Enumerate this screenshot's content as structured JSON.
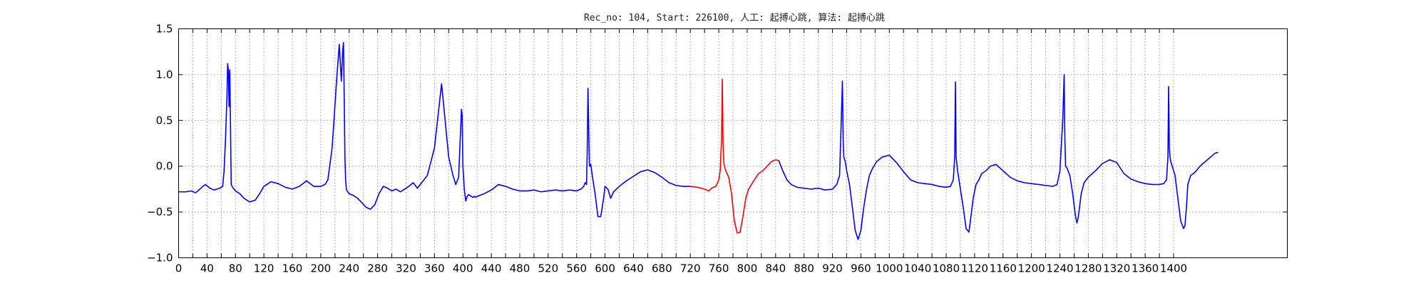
{
  "chart_data": {
    "type": "line",
    "title": "Rec_no: 104, Start: 226100, 人工: 起搏心跳, 算法: 起搏心跳",
    "xlabel": "",
    "ylabel": "",
    "xlim": [
      0,
      1560
    ],
    "ylim": [
      -1.0,
      1.5
    ],
    "grid": true,
    "y_ticks": [
      -1.0,
      -0.5,
      0.0,
      0.5,
      1.0,
      1.5
    ],
    "y_tick_labels": [
      "−1.0",
      "−0.5",
      "0.0",
      "0.5",
      "1.0",
      "1.5"
    ],
    "x_ticks": [
      0,
      20,
      40,
      60,
      80,
      100,
      120,
      140,
      160,
      180,
      200,
      220,
      240,
      260,
      280,
      300,
      320,
      340,
      360,
      380,
      400,
      420,
      440,
      460,
      480,
      500,
      520,
      540,
      560,
      580,
      600,
      620,
      640,
      660,
      680,
      700,
      720,
      740,
      760,
      780,
      800,
      820,
      840,
      860,
      880,
      900,
      920,
      940,
      960,
      980,
      1000,
      1020,
      1040,
      1060,
      1080,
      1100,
      1120,
      1140,
      1160,
      1180,
      1200,
      1220,
      1240,
      1260,
      1280,
      1300,
      1320,
      1340,
      1360,
      1380,
      1400
    ],
    "x_tick_labels": [
      "0",
      "",
      "40",
      "",
      "80",
      "",
      "120",
      "",
      "160",
      "",
      "200",
      "",
      "240",
      "",
      "280",
      "",
      "320",
      "",
      "360",
      "",
      "400",
      "",
      "440",
      "",
      "480",
      "",
      "520",
      "",
      "560",
      "",
      "600",
      "",
      "640",
      "",
      "680",
      "",
      "720",
      "",
      "760",
      "",
      "800",
      "",
      "840",
      "",
      "880",
      "",
      "920",
      "",
      "960",
      "",
      "1000",
      "",
      "1040",
      "",
      "1080",
      "",
      "1120",
      "",
      "1160",
      "",
      "1200",
      "",
      "1240",
      "",
      "1280",
      "",
      "1320",
      "",
      "1360",
      "",
      "1400"
    ],
    "series": [
      {
        "color": "#0000ff",
        "x": [
          0,
          10,
          18,
          24,
          30,
          34,
          38,
          44,
          50,
          54,
          58,
          62,
          64,
          66,
          68,
          69,
          70,
          71,
          72,
          73,
          74,
          76,
          80,
          86,
          92,
          100,
          108,
          114,
          120,
          130,
          140,
          150,
          160,
          170,
          180,
          190,
          200,
          206,
          210,
          216,
          222,
          226,
          229,
          231,
          232,
          233,
          234,
          235,
          236,
          237,
          238,
          240,
          246,
          252,
          258,
          264,
          270,
          276,
          282,
          288,
          294,
          300,
          306,
          312,
          318,
          324,
          330,
          336,
          340,
          350,
          360,
          370,
          380,
          386,
          390,
          394,
          396,
          398,
          399,
          400,
          402,
          404,
          406,
          408,
          410,
          412,
          414,
          416,
          418,
          420,
          430,
          440,
          450,
          460,
          470,
          480,
          490,
          500,
          510,
          520,
          530,
          540,
          550,
          560,
          566,
          570,
          572,
          574,
          575,
          576,
          578,
          580,
          582,
          586,
          590,
          594,
          598,
          600,
          604,
          608,
          612,
          620,
          630,
          640,
          650,
          660,
          670,
          680,
          690,
          700,
          710,
          720
        ],
        "y": [
          -0.28,
          -0.28,
          -0.27,
          -0.29,
          -0.25,
          -0.22,
          -0.2,
          -0.24,
          -0.26,
          -0.25,
          -0.24,
          -0.22,
          -0.05,
          0.3,
          0.75,
          1.12,
          1.05,
          0.65,
          1.05,
          0.45,
          -0.2,
          -0.23,
          -0.27,
          -0.3,
          -0.35,
          -0.39,
          -0.37,
          -0.3,
          -0.22,
          -0.17,
          -0.19,
          -0.23,
          -0.25,
          -0.22,
          -0.16,
          -0.22,
          -0.22,
          -0.2,
          -0.15,
          0.2,
          0.9,
          1.33,
          0.93,
          1.28,
          1.35,
          0.75,
          0.1,
          -0.15,
          -0.25,
          -0.27,
          -0.28,
          -0.3,
          -0.32,
          -0.35,
          -0.4,
          -0.45,
          -0.47,
          -0.42,
          -0.3,
          -0.22,
          -0.24,
          -0.27,
          -0.25,
          -0.28,
          -0.25,
          -0.22,
          -0.18,
          -0.24,
          -0.2,
          -0.1,
          0.2,
          0.9,
          0.1,
          -0.1,
          -0.2,
          -0.12,
          0.25,
          0.62,
          0.55,
          0.0,
          -0.25,
          -0.38,
          -0.33,
          -0.31,
          -0.32,
          -0.33,
          -0.34,
          -0.33,
          -0.34,
          -0.33,
          -0.3,
          -0.26,
          -0.2,
          -0.22,
          -0.25,
          -0.27,
          -0.27,
          -0.26,
          -0.28,
          -0.27,
          -0.26,
          -0.27,
          -0.26,
          -0.27,
          -0.25,
          -0.22,
          -0.18,
          -0.2,
          0.2,
          0.85,
          0.0,
          0.02,
          -0.1,
          -0.3,
          -0.55,
          -0.55,
          -0.35,
          -0.22,
          -0.25,
          -0.35,
          -0.28,
          -0.22,
          -0.16,
          -0.11,
          -0.06,
          -0.04,
          -0.07,
          -0.12,
          -0.18,
          -0.21,
          -0.22,
          -0.22
        ]
      },
      {
        "color": "#ff0000",
        "x": [
          720,
          730,
          740,
          746,
          750,
          756,
          760,
          762,
          764,
          765,
          766,
          767,
          768,
          770,
          774,
          778,
          782,
          786,
          790,
          794,
          798,
          802,
          806,
          810,
          816,
          822,
          828,
          834,
          840,
          845
        ],
        "y": [
          -0.22,
          -0.23,
          -0.25,
          -0.27,
          -0.24,
          -0.22,
          -0.15,
          -0.05,
          0.3,
          0.95,
          0.25,
          0.05,
          0.0,
          -0.05,
          -0.12,
          -0.3,
          -0.6,
          -0.73,
          -0.72,
          -0.55,
          -0.35,
          -0.25,
          -0.2,
          -0.15,
          -0.08,
          -0.05,
          0.0,
          0.05,
          0.07,
          0.06
        ]
      },
      {
        "color": "#0000ff",
        "x": [
          845,
          850,
          856,
          862,
          870,
          880,
          890,
          900,
          910,
          920,
          926,
          930,
          932,
          934,
          935,
          936,
          938,
          940,
          944,
          948,
          952,
          956,
          960,
          964,
          968,
          972,
          976,
          982,
          990,
          1000,
          1010,
          1020,
          1030,
          1040,
          1050,
          1060,
          1070,
          1080,
          1086,
          1090,
          1092,
          1093,
          1094,
          1096,
          1098,
          1100,
          1104,
          1108,
          1112,
          1114,
          1118,
          1122,
          1126,
          1130,
          1136,
          1142,
          1150,
          1160,
          1170,
          1180,
          1190,
          1200,
          1210,
          1220,
          1230,
          1236,
          1240,
          1244,
          1246,
          1247,
          1248,
          1250,
          1254,
          1258,
          1262,
          1264,
          1266,
          1270,
          1274,
          1280,
          1290,
          1300,
          1310,
          1320,
          1330,
          1340,
          1350,
          1360,
          1370,
          1380,
          1386,
          1390,
          1392,
          1393,
          1394,
          1395,
          1396,
          1398,
          1402,
          1406,
          1410,
          1414,
          1416,
          1418,
          1420,
          1424,
          1428,
          1432,
          1436,
          1440,
          1446,
          1452,
          1458,
          1462
        ],
        "y": [
          0.05,
          -0.05,
          -0.15,
          -0.2,
          -0.23,
          -0.24,
          -0.25,
          -0.24,
          -0.26,
          -0.25,
          -0.2,
          -0.1,
          0.4,
          0.93,
          0.3,
          0.1,
          0.05,
          -0.05,
          -0.2,
          -0.45,
          -0.7,
          -0.8,
          -0.7,
          -0.45,
          -0.25,
          -0.1,
          -0.03,
          0.05,
          0.1,
          0.12,
          0.04,
          -0.06,
          -0.15,
          -0.18,
          -0.19,
          -0.2,
          -0.22,
          -0.23,
          -0.22,
          -0.15,
          0.1,
          0.92,
          0.1,
          -0.05,
          -0.15,
          -0.25,
          -0.45,
          -0.68,
          -0.72,
          -0.6,
          -0.35,
          -0.2,
          -0.15,
          -0.08,
          -0.05,
          0.0,
          0.02,
          -0.05,
          -0.12,
          -0.16,
          -0.18,
          -0.19,
          -0.2,
          -0.21,
          -0.22,
          -0.2,
          -0.05,
          0.5,
          1.0,
          0.3,
          0.0,
          -0.02,
          -0.1,
          -0.3,
          -0.55,
          -0.62,
          -0.55,
          -0.3,
          -0.18,
          -0.12,
          -0.05,
          0.03,
          0.07,
          0.04,
          -0.08,
          -0.14,
          -0.17,
          -0.19,
          -0.2,
          -0.2,
          -0.19,
          -0.15,
          0.1,
          0.87,
          0.2,
          0.1,
          0.05,
          0.0,
          -0.1,
          -0.35,
          -0.6,
          -0.68,
          -0.65,
          -0.45,
          -0.2,
          -0.1,
          -0.08,
          -0.05,
          -0.01,
          0.02,
          0.06,
          0.1,
          0.14,
          0.15
        ]
      }
    ]
  }
}
